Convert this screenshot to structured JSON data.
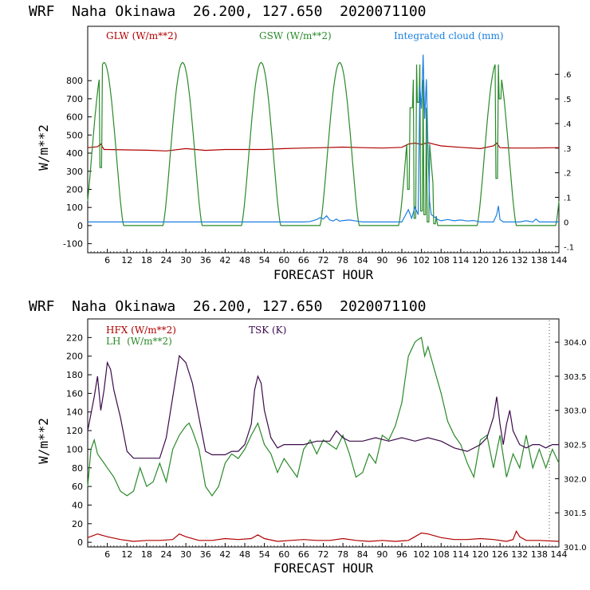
{
  "colors": {
    "red": "#b00000",
    "green": "#2a8a2a",
    "blue": "#1a7fe0",
    "purple": "#3c0a4a",
    "axis": "#000000"
  },
  "chart_data": [
    {
      "type": "line",
      "header": "WRF  Naha Okinawa  26.200, 127.650  2020071100",
      "xlabel": "FORECAST HOUR",
      "ylabel": "W/m**2",
      "xlim": [
        0,
        144
      ],
      "ylim": [
        -150,
        1100
      ],
      "xticks": [
        6,
        12,
        18,
        24,
        30,
        36,
        42,
        48,
        54,
        60,
        66,
        72,
        78,
        84,
        90,
        96,
        102,
        108,
        114,
        120,
        126,
        132,
        138,
        144
      ],
      "yticks": [
        -100,
        0,
        100,
        200,
        300,
        400,
        500,
        600,
        700,
        800
      ],
      "y2lim": [
        -0.125,
        0.795
      ],
      "y2ticks": [
        -0.1,
        0,
        0.1,
        0.2,
        0.3,
        0.4,
        0.5,
        0.6
      ],
      "y2ticklabels": [
        "-.1",
        "0",
        ".1",
        ".2",
        ".3",
        ".4",
        ".5",
        ".6"
      ],
      "legend": [
        {
          "label": "GLW (W/m**2)",
          "color": "#b00000"
        },
        {
          "label": "GSW (W/m**2)",
          "color": "#2a8a2a"
        },
        {
          "label": "Integrated cloud (mm)",
          "color": "#1a7fe0"
        }
      ],
      "series": [
        {
          "name": "GLW (W/m**2)",
          "axis": "left",
          "color": "#b00000",
          "x": [
            0,
            3,
            4,
            5,
            6,
            12,
            18,
            24,
            30,
            36,
            42,
            48,
            54,
            60,
            66,
            72,
            78,
            84,
            90,
            96,
            98,
            100,
            102,
            104,
            106,
            108,
            114,
            120,
            124,
            125,
            126,
            130,
            136,
            144
          ],
          "y": [
            430,
            435,
            450,
            420,
            420,
            418,
            416,
            412,
            425,
            415,
            420,
            420,
            420,
            425,
            428,
            430,
            433,
            430,
            428,
            432,
            450,
            455,
            448,
            458,
            448,
            440,
            432,
            425,
            440,
            455,
            430,
            428,
            428,
            430
          ]
        },
        {
          "name": "GSW (W/m**2)",
          "axis": "left",
          "color": "#2a8a2a",
          "x": [
            0,
            1,
            2,
            3,
            3.5,
            4,
            4.5,
            5,
            6,
            8,
            10,
            11,
            19,
            20,
            22,
            24,
            26,
            28,
            30,
            32,
            34,
            35,
            43,
            44,
            46,
            48,
            50,
            52,
            54,
            56,
            58,
            59,
            67,
            68,
            70,
            72,
            74,
            76,
            78,
            80,
            82,
            83,
            91,
            92,
            94,
            96,
            97,
            98,
            98.5,
            99,
            99.5,
            100,
            100.5,
            101,
            102,
            103,
            104,
            105,
            106,
            107,
            108,
            110,
            115,
            116,
            118,
            120,
            121,
            122,
            123,
            124,
            125,
            126,
            127,
            128,
            130,
            131,
            139,
            140,
            142,
            144
          ],
          "y": [
            0,
            0,
            0,
            0,
            0,
            0,
            0,
            0,
            0,
            0,
            0,
            0,
            0,
            0,
            0,
            0,
            0,
            0,
            0,
            0,
            0,
            0,
            0,
            0,
            0,
            0,
            0,
            0,
            0,
            0,
            0,
            0,
            0,
            0,
            0,
            0,
            0,
            0,
            0,
            0,
            0,
            0,
            0,
            0,
            0,
            0,
            0,
            0,
            0,
            0,
            0,
            0,
            0,
            0,
            0,
            0,
            0,
            0,
            0,
            0,
            0,
            0,
            0,
            0,
            0,
            0,
            0,
            0,
            0,
            0,
            0,
            0,
            0,
            0,
            0,
            0,
            0,
            0,
            0,
            0
          ],
          "shape": "diurnal",
          "peak": 900,
          "days": [
            {
              "start": -1,
              "end": 11
            },
            {
              "start": 23,
              "end": 35
            },
            {
              "start": 47,
              "end": 59
            },
            {
              "start": 71,
              "end": 83
            },
            {
              "start": 95,
              "end": 107
            },
            {
              "start": 119,
              "end": 131
            },
            {
              "start": 143,
              "end": 155
            }
          ],
          "notches": [
            {
              "x": 4,
              "y": 320
            },
            {
              "x": 98,
              "y": 200
            },
            {
              "x": 99,
              "y": 650
            },
            {
              "x": 100,
              "y": 40
            },
            {
              "x": 101,
              "y": 680
            },
            {
              "x": 102,
              "y": 80
            },
            {
              "x": 103,
              "y": 60
            },
            {
              "x": 104,
              "y": 20
            },
            {
              "x": 106,
              "y": 10
            },
            {
              "x": 125,
              "y": 260
            },
            {
              "x": 126,
              "y": 700
            }
          ]
        },
        {
          "name": "Integrated cloud (mm)",
          "axis": "right",
          "color": "#1a7fe0",
          "x": [
            0,
            66,
            68,
            70,
            71,
            72,
            73,
            74,
            75,
            76,
            77,
            78,
            80,
            82,
            84,
            96,
            98,
            99,
            100,
            101,
            101.5,
            102,
            102.5,
            103,
            103.5,
            104,
            104.5,
            105,
            106,
            107,
            108,
            110,
            112,
            114,
            116,
            118,
            120,
            124,
            125,
            125.5,
            126,
            127,
            132,
            134,
            136,
            137,
            138,
            144
          ],
          "y": [
            0,
            0,
            0.002,
            0.01,
            0.018,
            0.012,
            0.025,
            0.008,
            0.004,
            0.012,
            0.003,
            0.006,
            0.008,
            0.004,
            0,
            0,
            0.05,
            0.015,
            0.06,
            0.03,
            0.55,
            0.46,
            0.68,
            0.42,
            0.58,
            0.3,
            0.08,
            0.03,
            0.02,
            0.01,
            0.005,
            0.01,
            0.005,
            0.008,
            0.004,
            0.006,
            0,
            0,
            0.03,
            0.065,
            0.01,
            0,
            0,
            0.005,
            0,
            0.012,
            0,
            0
          ]
        }
      ]
    },
    {
      "type": "line",
      "header": "WRF  Naha Okinawa  26.200, 127.650  2020071100",
      "xlabel": "FORECAST HOUR",
      "ylabel": "W/m**2",
      "xlim": [
        0,
        144
      ],
      "ylim": [
        -5,
        240
      ],
      "xticks": [
        6,
        12,
        18,
        24,
        30,
        36,
        42,
        48,
        54,
        60,
        66,
        72,
        78,
        84,
        90,
        96,
        102,
        108,
        114,
        120,
        126,
        132,
        138,
        144
      ],
      "yticks": [
        0,
        20,
        40,
        60,
        80,
        100,
        120,
        140,
        160,
        180,
        200,
        220
      ],
      "y2lim": [
        301.0,
        304.34
      ],
      "y2ticks": [
        301.0,
        301.5,
        302.0,
        302.5,
        303.0,
        303.5,
        304.0
      ],
      "y2ticklabels": [
        "301.0",
        "301.5",
        "302.0",
        "302.5",
        "303.0",
        "303.5",
        "304.0"
      ],
      "legend": [
        {
          "label": "HFX (W/m**2)",
          "color": "#b00000"
        },
        {
          "label": "LH  (W/m**2)",
          "color": "#2a8a2a"
        },
        {
          "label": "TSK (K)",
          "color": "#3c0a4a"
        }
      ],
      "series": [
        {
          "name": "HFX (W/m**2)",
          "axis": "left",
          "color": "#b00000",
          "x": [
            0,
            3,
            6,
            10,
            14,
            18,
            22,
            26,
            28,
            30,
            34,
            38,
            42,
            46,
            50,
            52,
            54,
            58,
            62,
            66,
            70,
            74,
            78,
            82,
            86,
            90,
            94,
            98,
            100,
            102,
            104,
            108,
            112,
            116,
            120,
            124,
            128,
            130,
            131,
            132,
            134,
            138,
            144
          ],
          "y": [
            5,
            9,
            6,
            3,
            1,
            2,
            2,
            3,
            9,
            6,
            2,
            2,
            4,
            3,
            4,
            8,
            4,
            1,
            2,
            3,
            2,
            2,
            4,
            2,
            1,
            2,
            1,
            2,
            6,
            10,
            9,
            5,
            3,
            3,
            4,
            3,
            1,
            3,
            12,
            6,
            2,
            2,
            1
          ]
        },
        {
          "name": "LH  (W/m**2)",
          "axis": "left",
          "color": "#2a8a2a",
          "x": [
            0,
            1,
            2,
            3,
            4,
            5,
            6,
            8,
            10,
            12,
            14,
            16,
            18,
            20,
            22,
            24,
            26,
            28,
            30,
            31,
            32,
            34,
            36,
            38,
            40,
            42,
            44,
            46,
            48,
            50,
            52,
            54,
            56,
            58,
            60,
            62,
            64,
            66,
            68,
            70,
            72,
            74,
            76,
            78,
            80,
            82,
            84,
            86,
            88,
            90,
            92,
            94,
            96,
            98,
            100,
            101,
            102,
            103,
            104,
            106,
            108,
            110,
            112,
            114,
            116,
            118,
            120,
            122,
            124,
            126,
            128,
            130,
            132,
            134,
            136,
            138,
            140,
            142,
            144
          ],
          "y": [
            60,
            100,
            110,
            95,
            90,
            85,
            80,
            70,
            55,
            50,
            55,
            80,
            60,
            65,
            85,
            65,
            100,
            115,
            125,
            128,
            120,
            100,
            60,
            50,
            60,
            85,
            95,
            90,
            100,
            115,
            128,
            105,
            95,
            75,
            90,
            80,
            70,
            100,
            110,
            95,
            110,
            105,
            100,
            115,
            95,
            70,
            75,
            95,
            85,
            115,
            110,
            125,
            150,
            200,
            215,
            218,
            220,
            200,
            210,
            185,
            160,
            130,
            115,
            105,
            85,
            70,
            110,
            115,
            80,
            115,
            70,
            95,
            80,
            115,
            80,
            100,
            80,
            100,
            85
          ]
        },
        {
          "name": "TSK (K)",
          "axis": "right",
          "color": "#3c0a4a",
          "x": [
            0,
            2,
            3,
            4,
            5,
            6,
            7,
            8,
            9,
            10,
            12,
            14,
            16,
            18,
            20,
            22,
            24,
            26,
            28,
            30,
            32,
            34,
            36,
            38,
            40,
            42,
            44,
            46,
            48,
            50,
            51,
            52,
            53,
            54,
            56,
            58,
            60,
            62,
            64,
            66,
            70,
            74,
            76,
            78,
            80,
            84,
            88,
            92,
            96,
            100,
            104,
            108,
            112,
            116,
            120,
            122,
            124,
            125,
            126,
            127,
            128,
            129,
            130,
            132,
            134,
            136,
            138,
            140,
            142,
            144
          ],
          "y": [
            302.7,
            303.2,
            303.5,
            303.0,
            303.3,
            303.7,
            303.6,
            303.3,
            303.1,
            302.9,
            302.4,
            302.3,
            302.3,
            302.3,
            302.3,
            302.3,
            302.6,
            303.2,
            303.8,
            303.7,
            303.4,
            302.9,
            302.4,
            302.35,
            302.35,
            302.35,
            302.4,
            302.4,
            302.5,
            302.8,
            303.3,
            303.5,
            303.4,
            303.0,
            302.6,
            302.45,
            302.5,
            302.5,
            302.5,
            302.5,
            302.55,
            302.55,
            302.7,
            302.6,
            302.55,
            302.55,
            302.6,
            302.55,
            302.6,
            302.55,
            302.6,
            302.55,
            302.45,
            302.4,
            302.5,
            302.6,
            302.9,
            303.2,
            302.8,
            302.5,
            302.8,
            303.0,
            302.7,
            302.5,
            302.45,
            302.5,
            302.5,
            302.45,
            302.5,
            302.5
          ]
        }
      ]
    }
  ]
}
